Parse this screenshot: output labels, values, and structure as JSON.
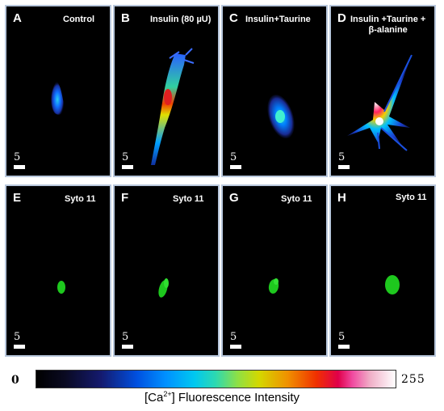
{
  "panels": [
    {
      "letter": "A",
      "title": "Control"
    },
    {
      "letter": "B",
      "title": "Insulin (80 µU)"
    },
    {
      "letter": "C",
      "title": "Insulin+Taurine"
    },
    {
      "letter": "D",
      "title": "Insulin +Taurine +\nβ-alanine"
    },
    {
      "letter": "E",
      "title": "Syto 11"
    },
    {
      "letter": "F",
      "title": "Syto 11"
    },
    {
      "letter": "G",
      "title": "Syto 11"
    },
    {
      "letter": "H",
      "title": "Syto 11"
    }
  ],
  "scale_label": "5",
  "colorbar": {
    "min": "0",
    "max": "255",
    "label_prefix": "[Ca",
    "label_sup": "2+",
    "label_suffix": "] Fluorescence Intensity"
  },
  "colors": {
    "panel_border": "#b8c7dc",
    "syto_green": "#1ec81e"
  }
}
